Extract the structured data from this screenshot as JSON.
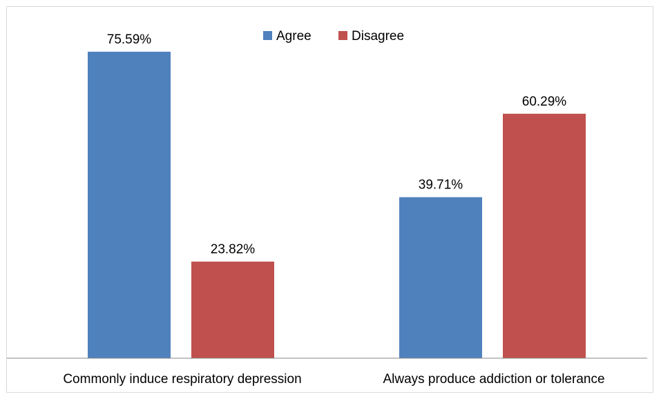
{
  "chart_data": {
    "type": "bar",
    "categories": [
      "Commonly induce respiratory depression",
      "Always produce addiction or tolerance"
    ],
    "series": [
      {
        "name": "Agree",
        "color": "#4f81bd",
        "values": [
          75.59,
          39.71
        ],
        "labels": [
          "75.59%",
          "39.71%"
        ]
      },
      {
        "name": "Disagree",
        "color": "#c0504d",
        "values": [
          23.82,
          60.29
        ],
        "labels": [
          "23.82%",
          "60.29%"
        ]
      }
    ],
    "title": "",
    "xlabel": "",
    "ylabel": "",
    "ylim": [
      0,
      80
    ],
    "grid": false,
    "legend_position": "top-center",
    "value_axis_visible": false
  }
}
